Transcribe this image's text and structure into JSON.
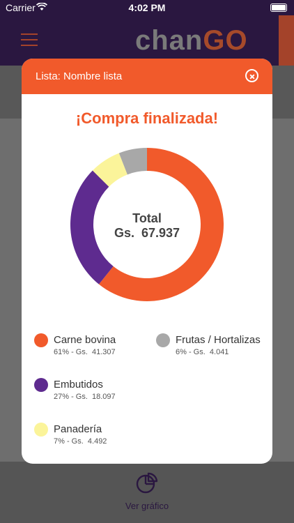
{
  "status_bar": {
    "carrier": "Carrier",
    "time": "4:02 PM"
  },
  "app": {
    "brand_prefix": "chan",
    "brand_suffix": "GO"
  },
  "modal": {
    "title": "Lista: Nombre lista",
    "heading": "¡Compra finalizada!",
    "total_label": "Total",
    "total_value": "Gs.  67.937"
  },
  "legend": [
    {
      "name": "Carne bovina",
      "detail": "61% - Gs.  41.307",
      "color": "#f15a2b"
    },
    {
      "name": "Frutas / Hortalizas",
      "detail": "6% - Gs.  4.041",
      "color": "#a8a8a8"
    },
    {
      "name": "Embutidos",
      "detail": "27% - Gs.  18.097",
      "color": "#5e2b8f"
    },
    {
      "name": "Panadería",
      "detail": "7% - Gs.  4.492",
      "color": "#fbf49a"
    }
  ],
  "chart_data": {
    "type": "pie",
    "categories": [
      "Carne bovina",
      "Embutidos",
      "Panadería",
      "Frutas / Hortalizas"
    ],
    "values": [
      41307,
      18097,
      4492,
      4041
    ],
    "colors": [
      "#f15a2b",
      "#5e2b8f",
      "#fbf49a",
      "#a8a8a8"
    ]
  },
  "bottom": {
    "ver_grafico": "Ver gráfico"
  }
}
